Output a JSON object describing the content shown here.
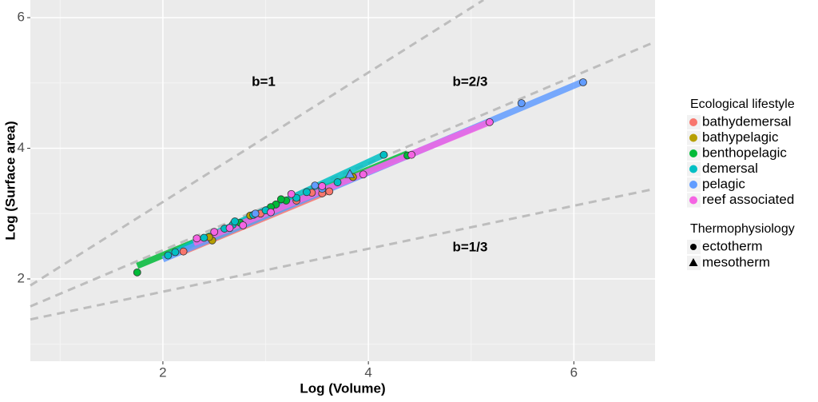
{
  "chart_data": {
    "type": "scatter",
    "x_label": "Log (Volume)",
    "y_label": "Log (Surface area)",
    "xlim": [
      0.71,
      6.79
    ],
    "ylim": [
      0.74,
      6.27
    ],
    "xticks": [
      2,
      4,
      6
    ],
    "yticks": [
      2,
      4,
      6
    ],
    "grid": true,
    "legend_position": "right",
    "legend_title": "Ecological lifestyle",
    "shape_legend_title": "Thermophysiology",
    "shape_legend": [
      {
        "name": "ectotherm",
        "marker": "circle"
      },
      {
        "name": "mesotherm",
        "marker": "triangle"
      }
    ],
    "reference_lines": [
      {
        "label": "b=1",
        "x": [
          0.71,
          5.12
        ],
        "y": [
          1.9,
          6.27
        ],
        "label_at": [
          2.98,
          5.01
        ]
      },
      {
        "label": "b=2/3",
        "x": [
          0.71,
          6.79
        ],
        "y": [
          1.58,
          5.63
        ],
        "label_at": [
          4.99,
          5.01
        ]
      },
      {
        "label": "b=1/3",
        "x": [
          0.71,
          6.79
        ],
        "y": [
          1.38,
          3.38
        ],
        "label_at": [
          4.99,
          2.48
        ]
      }
    ],
    "series": [
      {
        "name": "bathydemersal",
        "color": "#F8766D",
        "x": [
          2.2,
          3.55,
          3.62,
          3.45,
          2.95,
          3.3
        ],
        "values": [
          2.42,
          3.31,
          3.34,
          3.32,
          3.0,
          3.2
        ],
        "markers": [
          "circle",
          "circle",
          "circle",
          "circle",
          "circle",
          "circle"
        ],
        "fit_x": [
          2.2,
          3.62
        ],
        "fit_y": [
          2.42,
          3.35
        ]
      },
      {
        "name": "bathypelagic",
        "color": "#B79F00",
        "x": [
          2.48,
          2.45,
          3.85,
          2.85
        ],
        "values": [
          2.59,
          2.64,
          3.56,
          2.97
        ],
        "markers": [
          "circle",
          "circle",
          "circle",
          "circle"
        ],
        "fit_x": [
          2.45,
          3.85
        ],
        "fit_y": [
          2.6,
          3.55
        ]
      },
      {
        "name": "benthopelagic",
        "color": "#00BA38",
        "x": [
          1.75,
          3.1,
          3.2,
          3.15,
          4.38,
          2.75,
          3.05
        ],
        "values": [
          2.1,
          3.14,
          3.2,
          3.22,
          3.89,
          2.86,
          3.1
        ],
        "markers": [
          "circle",
          "circle",
          "circle",
          "circle",
          "circle",
          "circle",
          "circle"
        ],
        "fit_x": [
          1.75,
          4.38
        ],
        "fit_y": [
          2.2,
          3.92
        ]
      },
      {
        "name": "demersal",
        "color": "#00BFC4",
        "x": [
          2.05,
          2.12,
          2.4,
          2.68,
          2.7,
          2.88,
          3.4,
          3.7,
          4.15,
          2.6,
          3.3,
          3.0
        ],
        "values": [
          2.36,
          2.41,
          2.63,
          2.83,
          2.88,
          2.98,
          3.33,
          3.48,
          3.9,
          2.77,
          3.24,
          3.05
        ],
        "markers": [
          "circle",
          "circle",
          "circle",
          "circle",
          "circle",
          "circle",
          "circle",
          "circle",
          "circle",
          "circle",
          "circle",
          "circle"
        ],
        "fit_x": [
          2.05,
          4.15
        ],
        "fit_y": [
          2.36,
          3.9
        ]
      },
      {
        "name": "pelagic",
        "color": "#619CFF",
        "x": [
          6.09,
          5.49,
          3.48,
          3.55,
          2.9,
          3.82
        ],
        "values": [
          5.01,
          4.69,
          3.43,
          3.38,
          3.0,
          3.6
        ],
        "markers": [
          "circle",
          "circle",
          "circle",
          "circle",
          "circle",
          "triangle"
        ],
        "fit_x": [
          2.0,
          6.09
        ],
        "fit_y": [
          2.3,
          5.02
        ]
      },
      {
        "name": "reef associated",
        "color": "#F564E3",
        "x": [
          2.33,
          2.5,
          2.78,
          3.05,
          3.25,
          3.95,
          4.42,
          5.18,
          2.65,
          3.55
        ],
        "values": [
          2.62,
          2.72,
          2.82,
          3.02,
          3.3,
          3.6,
          3.9,
          4.4,
          2.78,
          3.42
        ],
        "markers": [
          "circle",
          "circle",
          "circle",
          "circle",
          "circle",
          "circle",
          "circle",
          "circle",
          "circle",
          "circle"
        ],
        "fit_x": [
          2.3,
          5.18
        ],
        "fit_y": [
          2.55,
          4.4
        ]
      }
    ]
  }
}
